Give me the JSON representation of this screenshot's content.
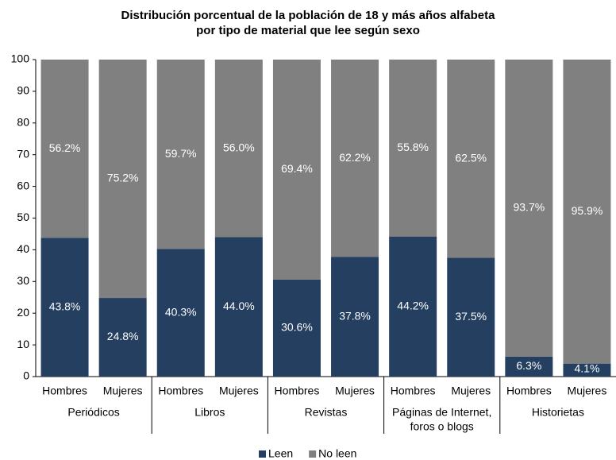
{
  "chart_data": {
    "type": "stacked_bar",
    "title": [
      "Distribución porcentual de la población de 18 y más años alfabeta",
      "por tipo de material que lee según sexo"
    ],
    "categories": [
      "Hombres",
      "Mujeres",
      "Hombres",
      "Mujeres",
      "Hombres",
      "Mujeres",
      "Hombres",
      "Mujeres",
      "Hombres",
      "Mujeres"
    ],
    "groups": [
      {
        "name": "Periódicos",
        "categories": [
          0,
          1
        ]
      },
      {
        "name": "Libros",
        "categories": [
          2,
          3
        ]
      },
      {
        "name": "Revistas",
        "categories": [
          4,
          5
        ]
      },
      {
        "name": [
          "Páginas de Internet,",
          "foros o blogs"
        ],
        "categories": [
          6,
          7
        ]
      },
      {
        "name": "Historietas",
        "categories": [
          8,
          9
        ]
      }
    ],
    "series": [
      {
        "name": "Leen",
        "color": "#243f60",
        "values": [
          43.8,
          24.8,
          40.3,
          44.0,
          30.6,
          37.8,
          44.2,
          37.5,
          6.3,
          4.1
        ],
        "value_labels": [
          "43.8%",
          "24.8%",
          "40.3%",
          "44.0%",
          "30.6%",
          "37.8%",
          "44.2%",
          "37.5%",
          "6.3%",
          "4.1%"
        ]
      },
      {
        "name": "No leen",
        "color": "#808080",
        "values": [
          56.2,
          75.2,
          59.7,
          56.0,
          69.4,
          62.2,
          55.8,
          62.5,
          93.7,
          95.9
        ],
        "value_labels": [
          "56.2%",
          "75.2%",
          "59.7%",
          "56.0%",
          "69.4%",
          "62.2%",
          "55.8%",
          "62.5%",
          "93.7%",
          "95.9%"
        ]
      }
    ],
    "ylim": [
      0,
      100
    ],
    "yticks": [
      0,
      10,
      20,
      30,
      40,
      50,
      60,
      70,
      80,
      90,
      100
    ],
    "grid": false,
    "legend": "bottom"
  }
}
